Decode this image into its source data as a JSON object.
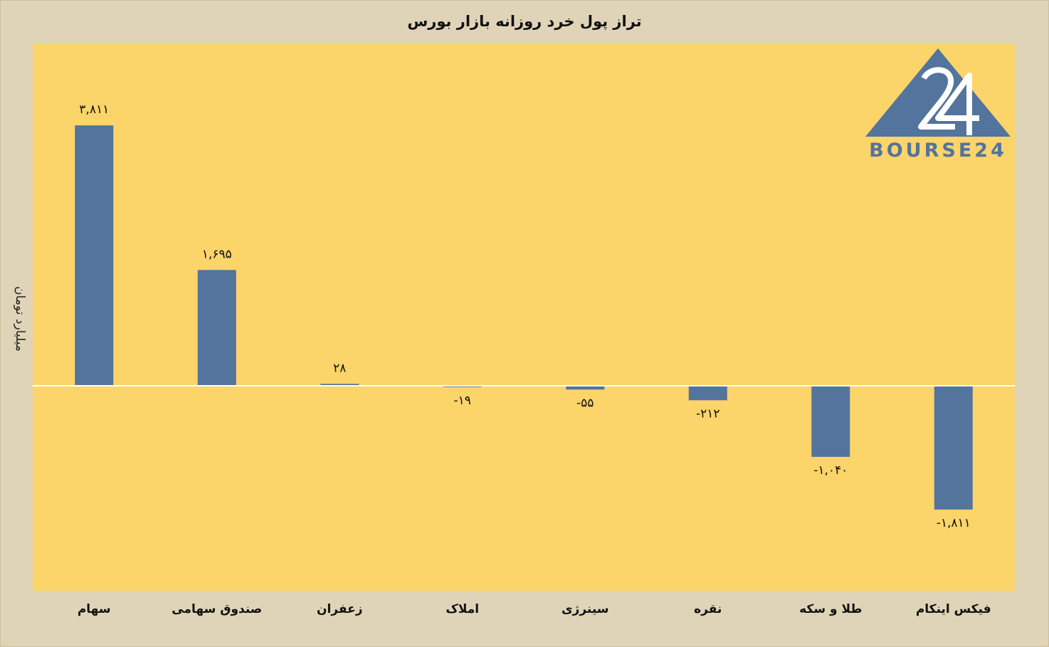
{
  "chart_data": {
    "type": "bar",
    "title": "تراز پول خرد روزانه بازار بورس",
    "ylabel": "میلیارد تومان",
    "categories": [
      "سهام",
      "صندوق سهامی",
      "زعفران",
      "املاک",
      "سینرژی",
      "نقره",
      "طلا و سکه",
      "فیکس اینکام"
    ],
    "values": [
      3811,
      1695,
      28,
      -19,
      -55,
      -212,
      -1040,
      -1811
    ],
    "value_labels": [
      "۳,۸۱۱",
      "۱,۶۹۵",
      "۲۸",
      "-۱۹",
      "-۵۵",
      "-۲۱۲",
      "-۱,۰۴۰",
      "-۱,۸۱۱"
    ],
    "ylim": [
      -3000,
      5000
    ],
    "grid": false,
    "colors": {
      "bar": "#52749d",
      "plot_background": "#fbd46a",
      "page_background": "#e0d4b8",
      "zero_line": "#ffffff"
    }
  },
  "logo": {
    "text": "BOURSE24",
    "color": "#52749d"
  }
}
